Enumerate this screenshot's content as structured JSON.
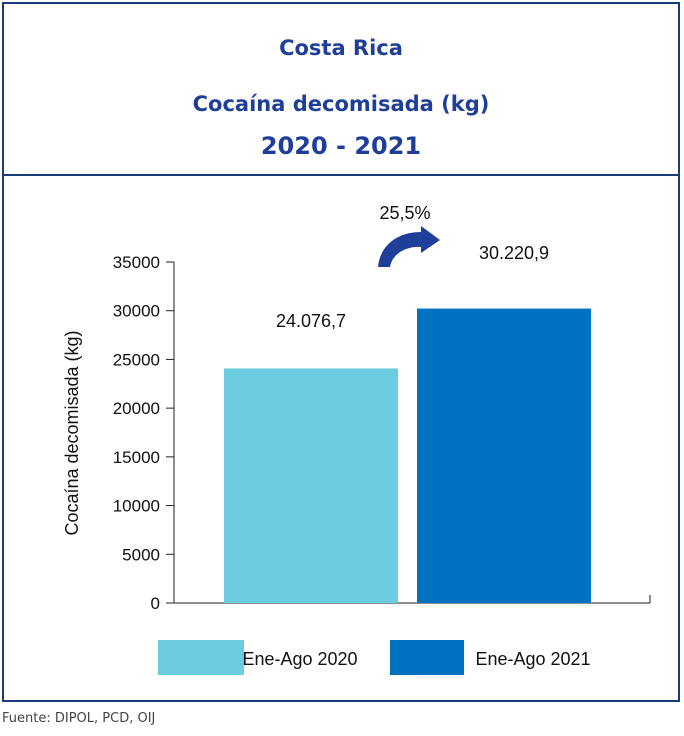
{
  "header": {
    "title": "Costa Rica",
    "subtitle": "Cocaína decomisada (kg)",
    "period": "2020 - 2021"
  },
  "source": "Fuente: DIPOL, PCD, OIJ",
  "colors": {
    "frame": "#1b3a7a",
    "title": "#1f3e9a",
    "bar_2020": "#6ccde0",
    "bar_2021": "#0072c1",
    "arrow": "#1f3e9a"
  },
  "icons": {
    "growth_arrow": "curved-arrow-icon"
  },
  "chart_data": {
    "type": "bar",
    "categories": [
      "Ene-Ago 2020",
      "Ene-Ago 2021"
    ],
    "values": [
      24076.7,
      30220.9
    ],
    "data_labels": [
      "24.076,7",
      "30.220,9"
    ],
    "colors": [
      "#6ccde0",
      "#0072c1"
    ],
    "ylabel": "Cocaína decomisada (kg)",
    "xlabel": "",
    "ylim": [
      0,
      35000
    ],
    "yticks": [
      0,
      5000,
      10000,
      15000,
      20000,
      25000,
      30000,
      35000
    ],
    "grid": false,
    "legend": {
      "placement": "bottom",
      "entries": [
        "Ene-Ago 2020",
        "Ene-Ago 2021"
      ]
    },
    "annotation": "25,5%"
  }
}
